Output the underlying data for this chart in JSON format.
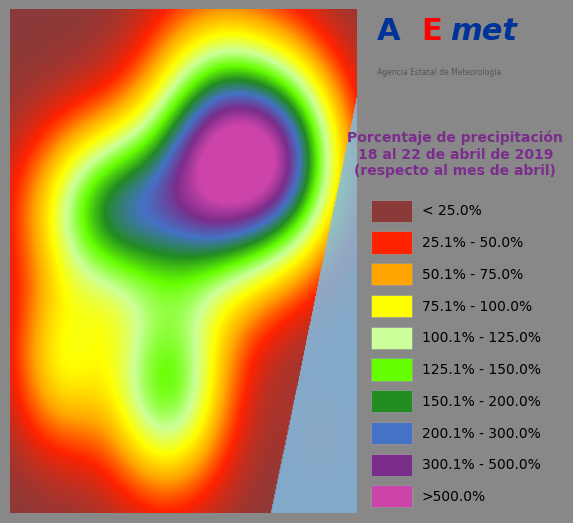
{
  "background_color": "#808080",
  "panel_color": "#d3d3d3",
  "title_text": "Porcentaje de precipitación\n18 al 22 de abril de 2019\n(respecto al mes de abril)",
  "title_color": "#7B2D8B",
  "legend_entries": [
    {
      "color": "#8B3A3A",
      "label": "< 25.0%"
    },
    {
      "color": "#FF2200",
      "label": "25.1% - 50.0%"
    },
    {
      "color": "#FFA500",
      "label": "50.1% - 75.0%"
    },
    {
      "color": "#FFFF00",
      "label": "75.1% - 100.0%"
    },
    {
      "color": "#CCFF99",
      "label": "100.1% - 125.0%"
    },
    {
      "color": "#66FF00",
      "label": "125.1% - 150.0%"
    },
    {
      "color": "#228B22",
      "label": "150.1% - 200.0%"
    },
    {
      "color": "#4472C4",
      "label": "200.1% - 300.0%"
    },
    {
      "color": "#7B2D8B",
      "label": "300.1% - 500.0%"
    },
    {
      "color": "#CC44AA",
      "label": ">500.0%"
    }
  ],
  "aemet_logo_colors": {
    "A_left": "#003399",
    "E": "#FF0000",
    "met": "#003399",
    "triangle_yellow": "#FFD700",
    "triangle_red": "#FF0000",
    "triangle_blue": "#003399",
    "subtitle": "#666666"
  },
  "legend_label_color": "#000000",
  "legend_label_fontsize": 10,
  "title_fontsize": 10,
  "outer_bg": "#888888",
  "inner_bg": "#E8E8E8",
  "map_placeholder_color": "#7BA7BC"
}
